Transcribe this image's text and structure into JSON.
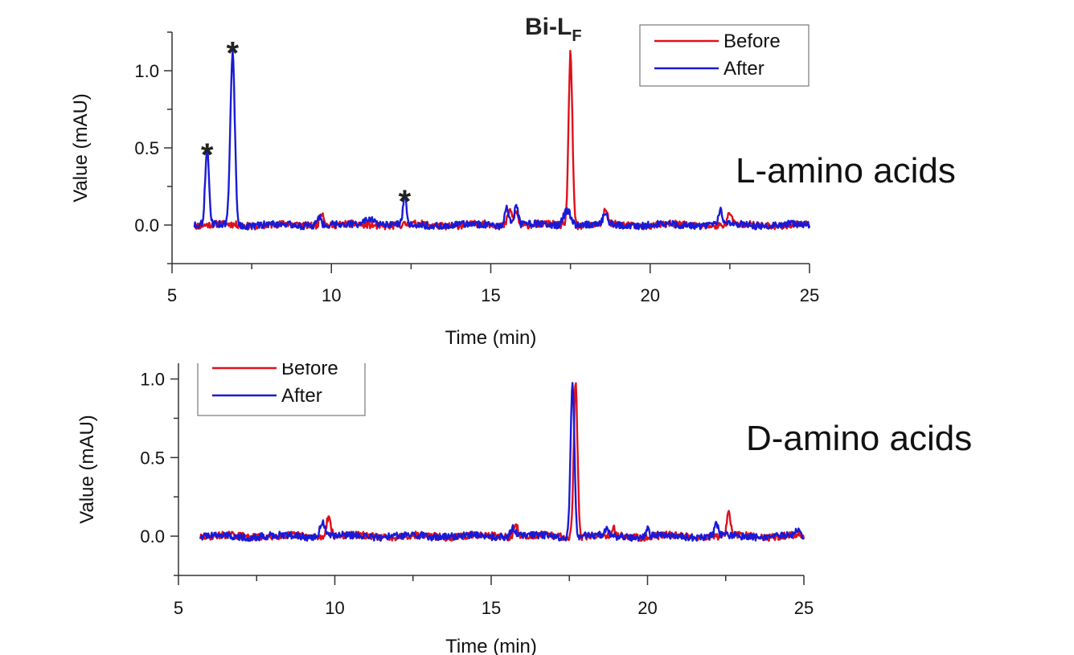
{
  "labels": {
    "top": "L-amino acids",
    "bottom": "D-amino acids"
  },
  "colors": {
    "before": "#e0101a",
    "after": "#1a1ad6",
    "axis": "#333333",
    "text": "#111111"
  },
  "chart_data": [
    {
      "type": "line",
      "title": "Bi-LF",
      "title_main": "Bi-L",
      "title_sub": "F",
      "xlabel": "Time (min)",
      "ylabel": "Value (mAU)",
      "xlim": [
        5,
        25
      ],
      "ylim": [
        -0.25,
        1.25
      ],
      "xticks": [
        5,
        10,
        15,
        20,
        25
      ],
      "yticks": [
        0.0,
        0.5,
        1.0
      ],
      "xtick_labels": [
        "5",
        "10",
        "15",
        "20",
        "25"
      ],
      "ytick_labels": [
        "0.0",
        "0.5",
        "1.0"
      ],
      "legend_position": "top-right",
      "annotations": [
        {
          "text": "*",
          "x": 6.1,
          "y": 0.52
        },
        {
          "text": "*",
          "x": 6.9,
          "y": 1.18
        },
        {
          "text": "*",
          "x": 12.3,
          "y": 0.22
        }
      ],
      "series": [
        {
          "name": "Before",
          "baseline": [
            [
              5.7,
              0.0
            ],
            [
              25.0,
              0.0
            ]
          ],
          "peaks": [
            [
              9.7,
              0.09,
              0.07
            ],
            [
              15.6,
              0.1,
              0.07
            ],
            [
              15.8,
              0.09,
              0.06
            ],
            [
              17.5,
              1.12,
              0.06
            ],
            [
              18.6,
              0.1,
              0.06
            ],
            [
              22.5,
              0.08,
              0.06
            ]
          ]
        },
        {
          "name": "After",
          "baseline": [
            [
              5.7,
              0.0
            ],
            [
              25.0,
              0.0
            ]
          ],
          "peaks": [
            [
              6.1,
              0.47,
              0.06
            ],
            [
              6.9,
              1.12,
              0.07
            ],
            [
              9.6,
              0.06,
              0.07
            ],
            [
              11.2,
              0.04,
              0.2
            ],
            [
              12.3,
              0.18,
              0.05
            ],
            [
              15.5,
              0.12,
              0.07
            ],
            [
              15.8,
              0.12,
              0.06
            ],
            [
              17.4,
              0.1,
              0.12
            ],
            [
              18.6,
              0.07,
              0.07
            ],
            [
              22.2,
              0.1,
              0.05
            ]
          ]
        }
      ]
    },
    {
      "type": "line",
      "title": "",
      "xlabel": "Time (min)",
      "ylabel": "Value (mAU)",
      "xlim": [
        5,
        25
      ],
      "ylim": [
        -0.25,
        1.1
      ],
      "xticks": [
        5,
        10,
        15,
        20,
        25
      ],
      "yticks": [
        0.0,
        0.5,
        1.0
      ],
      "xtick_labels": [
        "5",
        "10",
        "15",
        "20",
        "25"
      ],
      "ytick_labels": [
        "0.0",
        "0.5",
        "1.0"
      ],
      "legend_position": "top-left",
      "series": [
        {
          "name": "Before",
          "baseline": [
            [
              5.7,
              0.0
            ],
            [
              25.0,
              0.0
            ]
          ],
          "peaks": [
            [
              9.8,
              0.13,
              0.07
            ],
            [
              15.8,
              0.07,
              0.07
            ],
            [
              17.7,
              0.98,
              0.06
            ],
            [
              18.9,
              0.05,
              0.05
            ],
            [
              22.6,
              0.14,
              0.06
            ]
          ]
        },
        {
          "name": "After",
          "baseline": [
            [
              5.7,
              0.0
            ],
            [
              25.0,
              0.0
            ]
          ],
          "peaks": [
            [
              9.6,
              0.1,
              0.07
            ],
            [
              15.7,
              0.06,
              0.07
            ],
            [
              17.6,
              1.0,
              0.06
            ],
            [
              18.7,
              0.05,
              0.05
            ],
            [
              20.0,
              0.05,
              0.04
            ],
            [
              22.2,
              0.08,
              0.05
            ],
            [
              24.8,
              0.04,
              0.05
            ]
          ]
        }
      ]
    }
  ]
}
